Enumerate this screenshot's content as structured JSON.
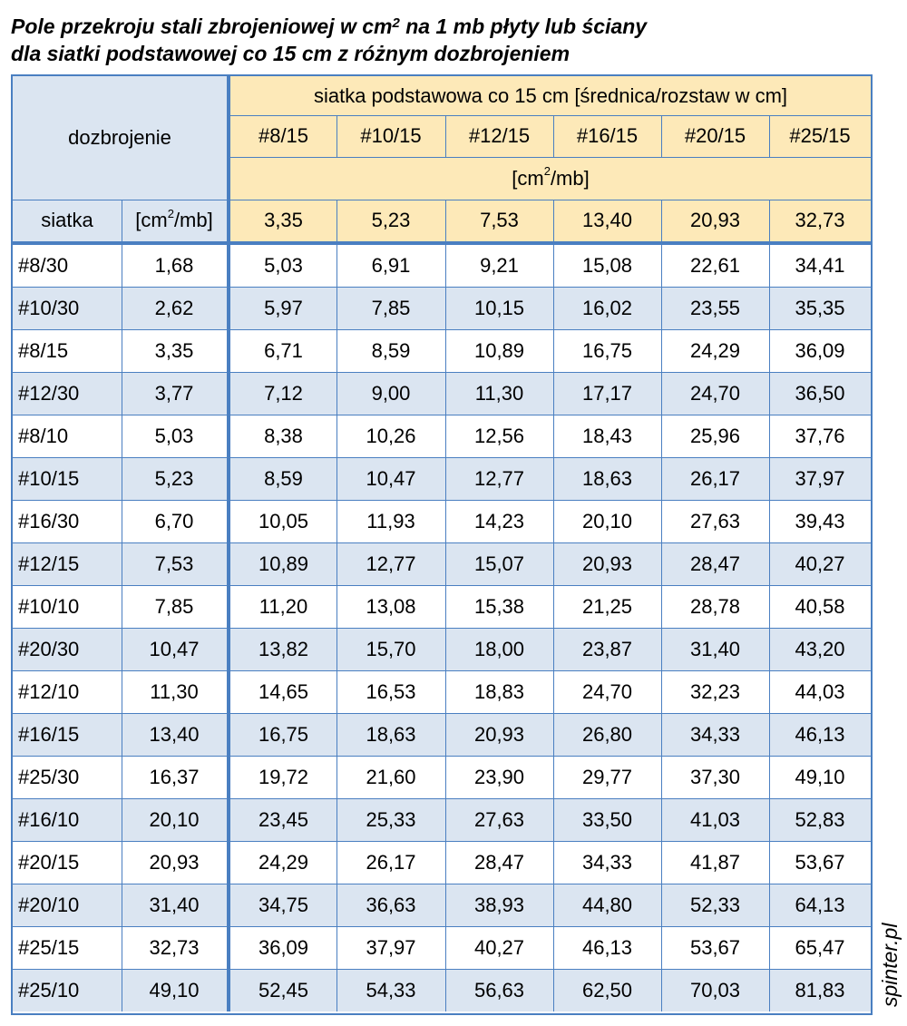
{
  "title": {
    "line1_prefix": "Pole przekroju stali zbrojeniowej w cm",
    "line1_sup": "2",
    "line1_suffix": " na 1 mb płyty lub ściany",
    "line2": "dla siatki podstawowej co 15 cm z różnym dozbrojeniem"
  },
  "header": {
    "dozbrojenie": "dozbrojenie",
    "group_label": "siatka podstawowa co 15 cm [średnica/rozstaw w cm]",
    "unit_prefix": "[cm",
    "unit_sup": "2",
    "unit_suffix": "/mb]",
    "siatka": "siatka",
    "base_meshes": [
      "#8/15",
      "#10/15",
      "#12/15",
      "#16/15",
      "#20/15",
      "#25/15"
    ],
    "base_areas": [
      "3,35",
      "5,23",
      "7,53",
      "13,40",
      "20,93",
      "32,73"
    ]
  },
  "rows": [
    {
      "mesh": "#8/30",
      "area": "1,68",
      "values": [
        "5,03",
        "6,91",
        "9,21",
        "15,08",
        "22,61",
        "34,41"
      ]
    },
    {
      "mesh": "#10/30",
      "area": "2,62",
      "values": [
        "5,97",
        "7,85",
        "10,15",
        "16,02",
        "23,55",
        "35,35"
      ]
    },
    {
      "mesh": "#8/15",
      "area": "3,35",
      "values": [
        "6,71",
        "8,59",
        "10,89",
        "16,75",
        "24,29",
        "36,09"
      ]
    },
    {
      "mesh": "#12/30",
      "area": "3,77",
      "values": [
        "7,12",
        "9,00",
        "11,30",
        "17,17",
        "24,70",
        "36,50"
      ]
    },
    {
      "mesh": "#8/10",
      "area": "5,03",
      "values": [
        "8,38",
        "10,26",
        "12,56",
        "18,43",
        "25,96",
        "37,76"
      ]
    },
    {
      "mesh": "#10/15",
      "area": "5,23",
      "values": [
        "8,59",
        "10,47",
        "12,77",
        "18,63",
        "26,17",
        "37,97"
      ]
    },
    {
      "mesh": "#16/30",
      "area": "6,70",
      "values": [
        "10,05",
        "11,93",
        "14,23",
        "20,10",
        "27,63",
        "39,43"
      ]
    },
    {
      "mesh": "#12/15",
      "area": "7,53",
      "values": [
        "10,89",
        "12,77",
        "15,07",
        "20,93",
        "28,47",
        "40,27"
      ]
    },
    {
      "mesh": "#10/10",
      "area": "7,85",
      "values": [
        "11,20",
        "13,08",
        "15,38",
        "21,25",
        "28,78",
        "40,58"
      ]
    },
    {
      "mesh": "#20/30",
      "area": "10,47",
      "values": [
        "13,82",
        "15,70",
        "18,00",
        "23,87",
        "31,40",
        "43,20"
      ]
    },
    {
      "mesh": "#12/10",
      "area": "11,30",
      "values": [
        "14,65",
        "16,53",
        "18,83",
        "24,70",
        "32,23",
        "44,03"
      ]
    },
    {
      "mesh": "#16/15",
      "area": "13,40",
      "values": [
        "16,75",
        "18,63",
        "20,93",
        "26,80",
        "34,33",
        "46,13"
      ]
    },
    {
      "mesh": "#25/30",
      "area": "16,37",
      "values": [
        "19,72",
        "21,60",
        "23,90",
        "29,77",
        "37,30",
        "49,10"
      ]
    },
    {
      "mesh": "#16/10",
      "area": "20,10",
      "values": [
        "23,45",
        "25,33",
        "27,63",
        "33,50",
        "41,03",
        "52,83"
      ]
    },
    {
      "mesh": "#20/15",
      "area": "20,93",
      "values": [
        "24,29",
        "26,17",
        "28,47",
        "34,33",
        "41,87",
        "53,67"
      ]
    },
    {
      "mesh": "#20/10",
      "area": "31,40",
      "values": [
        "34,75",
        "36,63",
        "38,93",
        "44,80",
        "52,33",
        "64,13"
      ]
    },
    {
      "mesh": "#25/15",
      "area": "32,73",
      "values": [
        "36,09",
        "37,97",
        "40,27",
        "46,13",
        "53,67",
        "65,47"
      ]
    },
    {
      "mesh": "#25/10",
      "area": "49,10",
      "values": [
        "52,45",
        "54,33",
        "56,63",
        "62,50",
        "70,03",
        "81,83"
      ]
    }
  ],
  "watermark": "spinter.pl",
  "colors": {
    "border": "#4a7fc1",
    "header_blue": "#dbe5f1",
    "header_yellow": "#fde9b8",
    "stripe_blue": "#dbe5f1"
  }
}
